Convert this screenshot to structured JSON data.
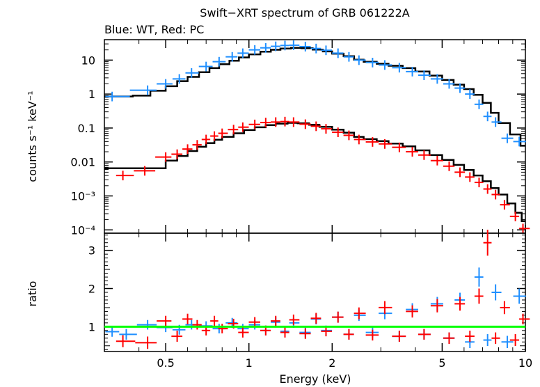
{
  "chart_data": {
    "type": "scatter",
    "title": "Swift−XRT spectrum of GRB 061222A",
    "subtitle": "Blue: WT, Red: PC",
    "xlabel": "Energy (keV)",
    "xscale": "log",
    "xlim": [
      0.3,
      10
    ],
    "x_ticks": [
      {
        "value": 0.5,
        "label": "0.5"
      },
      {
        "value": 1,
        "label": "1"
      },
      {
        "value": 2,
        "label": "2"
      },
      {
        "value": 5,
        "label": "5"
      },
      {
        "value": 10,
        "label": "10"
      }
    ],
    "colors": {
      "wt": "#1f8fff",
      "pc": "#ff0000",
      "model": "#000000",
      "ratio_line": "#00ff00"
    },
    "panels": [
      {
        "name": "spectrum",
        "ylabel": "counts s⁻¹ keV⁻¹",
        "yscale": "log",
        "ylim": [
          8e-05,
          40
        ],
        "y_ticks": [
          {
            "value": 10,
            "label": "10"
          },
          {
            "value": 1,
            "label": "1"
          },
          {
            "value": 0.1,
            "label": "0.1"
          },
          {
            "value": 0.01,
            "label": "0.01"
          },
          {
            "value": 0.001,
            "label": "10⁻³"
          },
          {
            "value": 0.0001,
            "label": "10⁻⁴"
          }
        ],
        "series": [
          {
            "name": "WT",
            "color": "#1f8fff",
            "points": [
              [
                0.32,
                0.85
              ],
              [
                0.43,
                1.3
              ],
              [
                0.5,
                2.0
              ],
              [
                0.56,
                2.8
              ],
              [
                0.62,
                4.2
              ],
              [
                0.7,
                6.5
              ],
              [
                0.78,
                9.0
              ],
              [
                0.87,
                12.5
              ],
              [
                0.95,
                16.0
              ],
              [
                1.05,
                20.0
              ],
              [
                1.15,
                23.0
              ],
              [
                1.25,
                25.5
              ],
              [
                1.35,
                27.0
              ],
              [
                1.45,
                27.5
              ],
              [
                1.6,
                25.0
              ],
              [
                1.75,
                22.0
              ],
              [
                1.9,
                19.5
              ],
              [
                2.1,
                16.0
              ],
              [
                2.3,
                12.5
              ],
              [
                2.5,
                10.0
              ],
              [
                2.8,
                8.5
              ],
              [
                3.1,
                7.2
              ],
              [
                3.5,
                6.0
              ],
              [
                3.9,
                4.6
              ],
              [
                4.3,
                3.6
              ],
              [
                4.8,
                2.8
              ],
              [
                5.3,
                2.0
              ],
              [
                5.8,
                1.5
              ],
              [
                6.3,
                1.0
              ],
              [
                6.8,
                0.5
              ],
              [
                7.3,
                0.22
              ],
              [
                7.8,
                0.15
              ],
              [
                8.6,
                0.05
              ],
              [
                9.5,
                0.04
              ]
            ]
          },
          {
            "name": "PC",
            "color": "#ff0000",
            "points": [
              [
                0.35,
                0.004
              ],
              [
                0.42,
                0.0055
              ],
              [
                0.5,
                0.014
              ],
              [
                0.55,
                0.017
              ],
              [
                0.6,
                0.024
              ],
              [
                0.65,
                0.032
              ],
              [
                0.7,
                0.046
              ],
              [
                0.75,
                0.058
              ],
              [
                0.8,
                0.07
              ],
              [
                0.88,
                0.09
              ],
              [
                0.95,
                0.106
              ],
              [
                1.05,
                0.128
              ],
              [
                1.15,
                0.145
              ],
              [
                1.25,
                0.15
              ],
              [
                1.35,
                0.155
              ],
              [
                1.45,
                0.15
              ],
              [
                1.6,
                0.13
              ],
              [
                1.75,
                0.113
              ],
              [
                1.9,
                0.095
              ],
              [
                2.1,
                0.075
              ],
              [
                2.3,
                0.061
              ],
              [
                2.5,
                0.046
              ],
              [
                2.8,
                0.039
              ],
              [
                3.1,
                0.034
              ],
              [
                3.5,
                0.027
              ],
              [
                3.9,
                0.02
              ],
              [
                4.3,
                0.016
              ],
              [
                4.8,
                0.011
              ],
              [
                5.3,
                0.0075
              ],
              [
                5.8,
                0.005
              ],
              [
                6.3,
                0.0036
              ],
              [
                6.8,
                0.0025
              ],
              [
                7.3,
                0.0016
              ],
              [
                7.8,
                0.0011
              ],
              [
                8.4,
                0.00055
              ],
              [
                9.2,
                0.00025
              ],
              [
                9.8,
                0.00011
              ]
            ]
          }
        ],
        "models": [
          {
            "name": "WT model",
            "steps": [
              [
                0.3,
                0.85
              ],
              [
                0.38,
                0.9
              ],
              [
                0.44,
                1.25
              ],
              [
                0.5,
                1.7
              ],
              [
                0.55,
                2.4
              ],
              [
                0.6,
                3.2
              ],
              [
                0.66,
                4.4
              ],
              [
                0.72,
                5.8
              ],
              [
                0.78,
                7.6
              ],
              [
                0.85,
                9.6
              ],
              [
                0.92,
                12.0
              ],
              [
                1.0,
                14.8
              ],
              [
                1.1,
                17.7
              ],
              [
                1.2,
                20.2
              ],
              [
                1.3,
                22.0
              ],
              [
                1.42,
                23.0
              ],
              [
                1.55,
                22.5
              ],
              [
                1.7,
                20.5
              ],
              [
                1.85,
                18.0
              ],
              [
                2.0,
                15.5
              ],
              [
                2.2,
                13.0
              ],
              [
                2.4,
                10.3
              ],
              [
                2.6,
                8.9
              ],
              [
                2.9,
                7.8
              ],
              [
                3.2,
                6.8
              ],
              [
                3.6,
                5.8
              ],
              [
                4.0,
                4.6
              ],
              [
                4.5,
                3.5
              ],
              [
                5.0,
                2.6
              ],
              [
                5.5,
                1.9
              ],
              [
                6.0,
                1.4
              ],
              [
                6.5,
                0.95
              ],
              [
                7.0,
                0.55
              ],
              [
                7.5,
                0.28
              ],
              [
                8.0,
                0.14
              ],
              [
                8.8,
                0.065
              ],
              [
                9.6,
                0.03
              ]
            ]
          },
          {
            "name": "PC model",
            "steps": [
              [
                0.3,
                0.0065
              ],
              [
                0.44,
                0.0065
              ],
              [
                0.5,
                0.011
              ],
              [
                0.55,
                0.015
              ],
              [
                0.6,
                0.021
              ],
              [
                0.65,
                0.028
              ],
              [
                0.7,
                0.036
              ],
              [
                0.75,
                0.045
              ],
              [
                0.8,
                0.055
              ],
              [
                0.88,
                0.07
              ],
              [
                0.96,
                0.087
              ],
              [
                1.05,
                0.105
              ],
              [
                1.15,
                0.122
              ],
              [
                1.25,
                0.135
              ],
              [
                1.38,
                0.142
              ],
              [
                1.5,
                0.138
              ],
              [
                1.65,
                0.125
              ],
              [
                1.8,
                0.108
              ],
              [
                2.0,
                0.09
              ],
              [
                2.2,
                0.073
              ],
              [
                2.4,
                0.055
              ],
              [
                2.6,
                0.047
              ],
              [
                2.9,
                0.041
              ],
              [
                3.2,
                0.035
              ],
              [
                3.6,
                0.029
              ],
              [
                4.0,
                0.022
              ],
              [
                4.5,
                0.016
              ],
              [
                5.0,
                0.0115
              ],
              [
                5.5,
                0.0082
              ],
              [
                6.0,
                0.0058
              ],
              [
                6.5,
                0.004
              ],
              [
                7.0,
                0.0027
              ],
              [
                7.5,
                0.0017
              ],
              [
                8.0,
                0.0011
              ],
              [
                8.6,
                0.0006
              ],
              [
                9.2,
                0.00032
              ],
              [
                9.7,
                0.00018
              ]
            ]
          }
        ]
      },
      {
        "name": "ratio",
        "ylabel": "ratio",
        "yscale": "linear",
        "ylim": [
          0.35,
          3.45
        ],
        "y_ticks": [
          {
            "value": 1,
            "label": "1"
          },
          {
            "value": 2,
            "label": "2"
          },
          {
            "value": 3,
            "label": "3"
          }
        ],
        "reference_line": 1,
        "series": [
          {
            "name": "WT",
            "color": "#1f8fff",
            "points": [
              [
                0.32,
                0.87
              ],
              [
                0.36,
                0.8
              ],
              [
                0.43,
                1.05
              ],
              [
                0.5,
                0.98
              ],
              [
                0.56,
                0.92
              ],
              [
                0.62,
                1.05
              ],
              [
                0.7,
                1.02
              ],
              [
                0.78,
                0.95
              ],
              [
                0.87,
                1.1
              ],
              [
                0.95,
                0.95
              ],
              [
                1.05,
                1.05
              ],
              [
                1.15,
                0.9
              ],
              [
                1.25,
                1.12
              ],
              [
                1.35,
                0.88
              ],
              [
                1.45,
                1.1
              ],
              [
                1.6,
                0.85
              ],
              [
                1.75,
                1.2
              ],
              [
                1.9,
                0.9
              ],
              [
                2.1,
                1.25
              ],
              [
                2.3,
                0.8
              ],
              [
                2.5,
                1.3
              ],
              [
                2.8,
                0.85
              ],
              [
                3.1,
                1.35
              ],
              [
                3.5,
                0.75
              ],
              [
                3.9,
                1.45
              ],
              [
                4.3,
                0.8
              ],
              [
                4.8,
                1.6
              ],
              [
                5.3,
                0.7
              ],
              [
                5.8,
                1.7
              ],
              [
                6.3,
                0.6
              ],
              [
                6.8,
                2.3
              ],
              [
                7.3,
                0.65
              ],
              [
                7.8,
                1.9
              ],
              [
                8.6,
                0.6
              ],
              [
                9.5,
                1.8
              ]
            ]
          },
          {
            "name": "PC",
            "color": "#ff0000",
            "points": [
              [
                0.35,
                0.62
              ],
              [
                0.43,
                0.58
              ],
              [
                0.5,
                1.15
              ],
              [
                0.55,
                0.75
              ],
              [
                0.6,
                1.2
              ],
              [
                0.65,
                1.05
              ],
              [
                0.7,
                0.9
              ],
              [
                0.75,
                1.15
              ],
              [
                0.8,
                0.95
              ],
              [
                0.88,
                1.08
              ],
              [
                0.95,
                0.85
              ],
              [
                1.05,
                1.12
              ],
              [
                1.15,
                0.9
              ],
              [
                1.25,
                1.15
              ],
              [
                1.35,
                0.85
              ],
              [
                1.45,
                1.18
              ],
              [
                1.6,
                0.82
              ],
              [
                1.75,
                1.22
              ],
              [
                1.9,
                0.88
              ],
              [
                2.1,
                1.25
              ],
              [
                2.3,
                0.8
              ],
              [
                2.5,
                1.35
              ],
              [
                2.8,
                0.78
              ],
              [
                3.1,
                1.5
              ],
              [
                3.5,
                0.75
              ],
              [
                3.9,
                1.4
              ],
              [
                4.3,
                0.8
              ],
              [
                4.8,
                1.55
              ],
              [
                5.3,
                0.7
              ],
              [
                5.8,
                1.6
              ],
              [
                6.3,
                0.75
              ],
              [
                6.8,
                1.8
              ],
              [
                7.3,
                3.2
              ],
              [
                7.8,
                0.7
              ],
              [
                8.4,
                1.5
              ],
              [
                9.2,
                0.65
              ],
              [
                9.8,
                1.2
              ]
            ]
          }
        ]
      }
    ]
  }
}
